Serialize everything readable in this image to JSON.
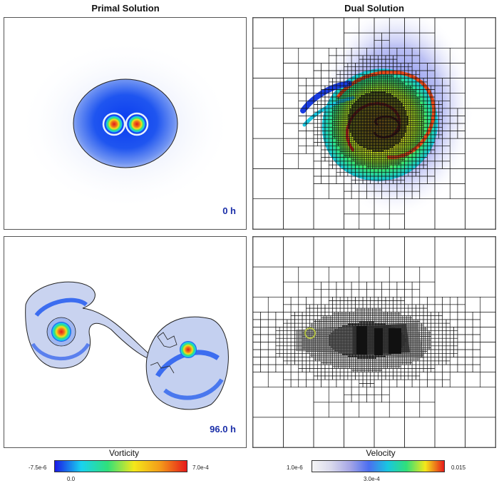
{
  "titles": {
    "primal": "Primal Solution",
    "dual": "Dual Solution"
  },
  "time_labels": {
    "top": "0 h",
    "bottom": "96.0 h"
  },
  "colorbars": {
    "vorticity": {
      "title": "Vorticity",
      "min_label": "-7.5e-6",
      "mid_label": "0.0",
      "max_label": "7.0e-4",
      "colors": [
        "#1a1ae6",
        "#19d3f0",
        "#30e07a",
        "#f4e81a",
        "#f39a1a",
        "#e61a1a"
      ]
    },
    "velocity": {
      "title": "Velocity",
      "min_label": "1.0e-6",
      "mid_label": "3.0e-4",
      "max_label": "0.015",
      "colors": [
        "#f5f5f5",
        "#d9d9ec",
        "#a6a6e6",
        "#4b6ef0",
        "#19c6e0",
        "#30e07a",
        "#f4e81a",
        "#e61a1a"
      ]
    }
  }
}
